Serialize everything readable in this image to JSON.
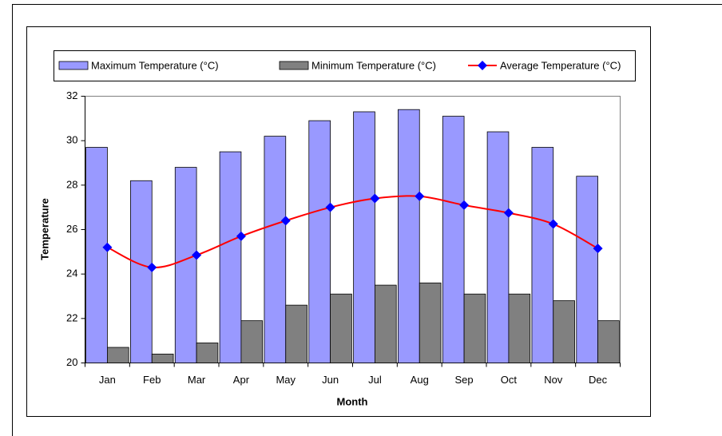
{
  "chart_data": {
    "type": "bar-line",
    "x_label": "Month",
    "y_label": "Temperature",
    "categories": [
      "Jan",
      "Feb",
      "Mar",
      "Apr",
      "May",
      "Jun",
      "Jul",
      "Aug",
      "Sep",
      "Oct",
      "Nov",
      "Dec"
    ],
    "series": [
      {
        "name": "Maximum Temperature (°C)",
        "type": "bar",
        "color": "#9999ff",
        "values": [
          29.7,
          28.2,
          28.8,
          29.5,
          30.2,
          30.9,
          31.3,
          31.4,
          31.1,
          30.4,
          29.7,
          28.4
        ]
      },
      {
        "name": "Minimum Temperature (°C)",
        "type": "bar",
        "color": "#808080",
        "values": [
          20.7,
          20.4,
          20.9,
          21.9,
          22.6,
          23.1,
          23.5,
          23.6,
          23.1,
          23.1,
          22.8,
          21.9
        ]
      },
      {
        "name": "Average Temperature (°C)",
        "type": "line",
        "color": "#ff0000",
        "marker_color": "#0000ff",
        "values": [
          25.2,
          24.3,
          24.85,
          25.7,
          26.4,
          27.0,
          27.4,
          27.5,
          27.1,
          26.75,
          26.25,
          25.15
        ]
      }
    ],
    "ylim": [
      20,
      32
    ],
    "yticks": [
      20,
      22,
      24,
      26,
      28,
      30,
      32
    ],
    "legend": "top"
  }
}
